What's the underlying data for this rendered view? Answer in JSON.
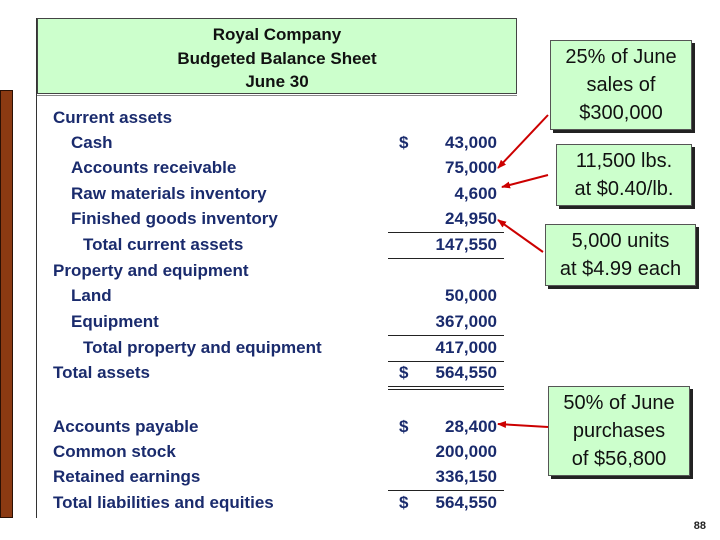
{
  "sheet": {
    "title_lines": [
      "Royal Company",
      "Budgeted Balance Sheet",
      "June 30"
    ],
    "rows": [
      {
        "label": "Current assets",
        "currency": "",
        "amount": ""
      },
      {
        "label": "Cash",
        "currency": "$",
        "amount": "43,000"
      },
      {
        "label": "Accounts receivable",
        "currency": "",
        "amount": "75,000"
      },
      {
        "label": "Raw materials inventory",
        "currency": "",
        "amount": "4,600"
      },
      {
        "label": "Finished goods inventory",
        "currency": "",
        "amount": "24,950"
      },
      {
        "label": "Total current assets",
        "currency": "",
        "amount": "147,550"
      },
      {
        "label": "Property and equipment",
        "currency": "",
        "amount": ""
      },
      {
        "label": "Land",
        "currency": "",
        "amount": "50,000"
      },
      {
        "label": "Equipment",
        "currency": "",
        "amount": "367,000"
      },
      {
        "label": "Total property and equipment",
        "currency": "",
        "amount": "417,000"
      },
      {
        "label": "Total assets",
        "currency": "$",
        "amount": "564,550"
      },
      {
        "label": "Accounts payable",
        "currency": "$",
        "amount": "28,400"
      },
      {
        "label": "Common stock",
        "currency": "",
        "amount": "200,000"
      },
      {
        "label": "Retained earnings",
        "currency": "",
        "amount": "336,150"
      },
      {
        "label": "Total liabilities and equities",
        "currency": "$",
        "amount": "564,550"
      }
    ]
  },
  "callouts": [
    {
      "lines": [
        "25% of June",
        "sales of",
        "$300,000"
      ]
    },
    {
      "lines": [
        "11,500 lbs.",
        "at $0.40/lb."
      ]
    },
    {
      "lines": [
        "5,000 units",
        "at $4.99 each"
      ]
    },
    {
      "lines": [
        "50% of June",
        "purchases",
        "of $56,800"
      ]
    }
  ],
  "page_number": "88",
  "colors": {
    "header_fill": "#ccffcc",
    "row_text": "#1a2b6d",
    "arrow": "#cc0000",
    "left_bar": "#8b3a12"
  }
}
